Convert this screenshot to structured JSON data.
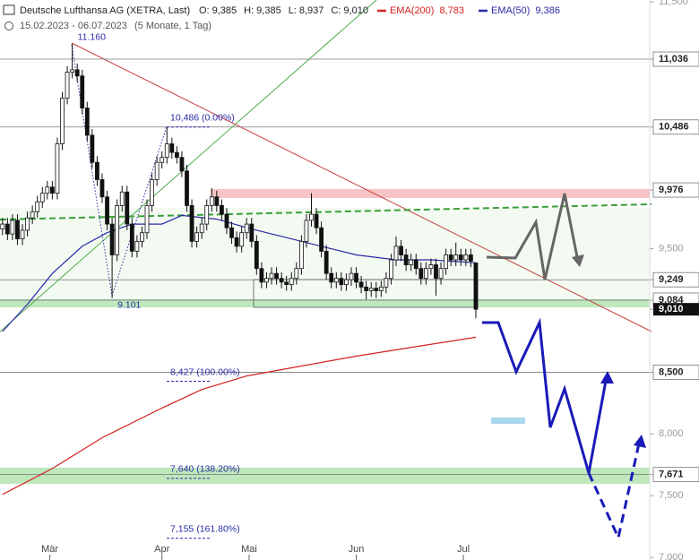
{
  "chart_data": {
    "type": "candlestick",
    "title": "Deutsche Lufthansa AG (XETRA, Last)",
    "quote": [
      {
        "name": "O:",
        "value": 9.385,
        "label": "9,385"
      },
      {
        "name": "H:",
        "value": 9.385,
        "label": "9,385"
      },
      {
        "name": "L:",
        "value": 8.937,
        "label": "8,937"
      },
      {
        "name": "C:",
        "value": 9.01,
        "label": "9,010"
      }
    ],
    "subtitle": "15.02.2023 - 06.07.2023",
    "period": "(5 Monate, 1 Tag)",
    "open": [
      9.66,
      9.7,
      9.62,
      9.73,
      9.58,
      9.65,
      9.75,
      9.8,
      9.88,
      9.95,
      10.0,
      9.95,
      10.35,
      10.72,
      10.93,
      10.95,
      10.9,
      10.64,
      10.42,
      10.2,
      10.06,
      9.92,
      9.7,
      9.45,
      9.85,
      9.96,
      9.7,
      9.48,
      9.56,
      9.63,
      9.85,
      10.06,
      10.2,
      10.24,
      10.35,
      10.28,
      10.24,
      10.13,
      9.85,
      9.56,
      9.63,
      9.7,
      9.85,
      9.92,
      9.85,
      9.78,
      9.67,
      9.59,
      9.52,
      9.63,
      9.7,
      9.56,
      9.34,
      9.23,
      9.26,
      9.3,
      9.26,
      9.23,
      9.21,
      9.26,
      9.34,
      9.56,
      9.73,
      9.78,
      9.67,
      9.48,
      9.3,
      9.23,
      9.26,
      9.21,
      9.25,
      9.3,
      9.23,
      9.19,
      9.16,
      9.18,
      9.16,
      9.19,
      9.26,
      9.41,
      9.52,
      9.45,
      9.37,
      9.41,
      9.34,
      9.26,
      9.34,
      9.37,
      9.26,
      9.34,
      9.45,
      9.41,
      9.45,
      9.41,
      9.45,
      9.385
    ],
    "high": [
      9.75,
      9.75,
      9.78,
      9.78,
      9.7,
      9.8,
      9.85,
      9.93,
      10.0,
      10.05,
      10.05,
      10.4,
      10.77,
      10.98,
      11.16,
      11.0,
      10.95,
      10.69,
      10.47,
      10.25,
      10.11,
      9.97,
      9.75,
      9.9,
      10.01,
      10.01,
      9.75,
      9.61,
      9.68,
      9.9,
      10.11,
      10.25,
      10.29,
      10.486,
      10.4,
      10.33,
      10.29,
      10.18,
      9.9,
      9.68,
      9.75,
      9.9,
      9.99,
      9.97,
      9.9,
      9.83,
      9.72,
      9.64,
      9.68,
      9.75,
      9.75,
      9.61,
      9.39,
      9.31,
      9.35,
      9.35,
      9.31,
      9.28,
      9.31,
      9.39,
      9.61,
      9.78,
      9.95,
      9.83,
      9.72,
      9.53,
      9.35,
      9.31,
      9.31,
      9.3,
      9.35,
      9.35,
      9.28,
      9.24,
      9.23,
      9.23,
      9.24,
      9.31,
      9.46,
      9.6,
      9.57,
      9.5,
      9.46,
      9.46,
      9.39,
      9.39,
      9.42,
      9.42,
      9.39,
      9.5,
      9.5,
      9.55,
      9.5,
      9.5,
      9.5,
      9.385
    ],
    "low": [
      9.61,
      9.57,
      9.57,
      9.53,
      9.53,
      9.6,
      9.7,
      9.75,
      9.83,
      9.9,
      9.9,
      9.9,
      10.3,
      10.67,
      10.88,
      10.85,
      10.59,
      10.37,
      10.15,
      10.01,
      9.87,
      9.65,
      9.101,
      9.4,
      9.8,
      9.65,
      9.43,
      9.43,
      9.51,
      9.58,
      9.8,
      10.01,
      10.15,
      10.19,
      10.23,
      10.19,
      10.08,
      9.8,
      9.51,
      9.51,
      9.58,
      9.65,
      9.8,
      9.8,
      9.73,
      9.62,
      9.54,
      9.47,
      9.47,
      9.58,
      9.51,
      9.29,
      9.18,
      9.18,
      9.21,
      9.21,
      9.18,
      9.16,
      9.16,
      9.21,
      9.29,
      9.51,
      9.68,
      9.62,
      9.43,
      9.25,
      9.18,
      9.18,
      9.16,
      9.16,
      9.2,
      9.18,
      9.14,
      9.09,
      9.11,
      9.1,
      9.11,
      9.14,
      9.21,
      9.36,
      9.4,
      9.32,
      9.32,
      9.29,
      9.21,
      9.21,
      9.29,
      9.12,
      9.21,
      9.29,
      9.36,
      9.36,
      9.36,
      9.36,
      9.35,
      8.937
    ],
    "close": [
      9.7,
      9.62,
      9.73,
      9.58,
      9.65,
      9.75,
      9.8,
      9.88,
      9.95,
      10.0,
      9.95,
      10.35,
      10.72,
      10.93,
      10.95,
      10.9,
      10.64,
      10.42,
      10.2,
      10.06,
      9.92,
      9.7,
      9.45,
      9.85,
      9.96,
      9.7,
      9.48,
      9.56,
      9.63,
      9.85,
      10.06,
      10.2,
      10.24,
      10.35,
      10.28,
      10.24,
      10.13,
      9.85,
      9.56,
      9.63,
      9.7,
      9.85,
      9.92,
      9.85,
      9.78,
      9.67,
      9.59,
      9.52,
      9.63,
      9.7,
      9.56,
      9.34,
      9.23,
      9.26,
      9.3,
      9.26,
      9.23,
      9.21,
      9.26,
      9.34,
      9.56,
      9.73,
      9.78,
      9.67,
      9.48,
      9.3,
      9.23,
      9.26,
      9.21,
      9.25,
      9.3,
      9.23,
      9.19,
      9.16,
      9.18,
      9.16,
      9.19,
      9.26,
      9.41,
      9.52,
      9.45,
      9.37,
      9.41,
      9.34,
      9.26,
      9.34,
      9.37,
      9.26,
      9.34,
      9.45,
      9.41,
      9.45,
      9.41,
      9.45,
      9.4,
      9.01
    ],
    "series": [
      {
        "name": "EMA(200)",
        "color": "#d42020",
        "last": {
          "value": 8.783,
          "label": "8,783"
        },
        "x": [
          0,
          10,
          20,
          32,
          40,
          49,
          60,
          71,
          85,
          95
        ],
        "values": [
          7.51,
          7.72,
          7.97,
          8.21,
          8.36,
          8.47,
          8.55,
          8.63,
          8.72,
          8.783
        ]
      },
      {
        "name": "EMA(50)",
        "color": "#2a2aa8",
        "last": {
          "value": 9.386,
          "label": "9,386"
        },
        "x": [
          0,
          5,
          10,
          16,
          21,
          26,
          32,
          36,
          43,
          50,
          57,
          64,
          71,
          79,
          86,
          95
        ],
        "values": [
          8.83,
          9.05,
          9.3,
          9.52,
          9.63,
          9.7,
          9.7,
          9.77,
          9.74,
          9.66,
          9.59,
          9.52,
          9.45,
          9.41,
          9.41,
          9.386
        ]
      }
    ],
    "xlim": [
      -0.5,
      129.9
    ],
    "xticks": [
      {
        "value": 9.5,
        "label": "Mär"
      },
      {
        "value": 32,
        "label": "Apr"
      },
      {
        "value": 49.5,
        "label": "Mai"
      },
      {
        "value": 71,
        "label": "Jun"
      },
      {
        "value": 92.5,
        "label": "Jul"
      }
    ],
    "ylim": [
      6.979,
      11.515
    ],
    "yticks": [
      {
        "value": 11.5,
        "label": "11,500"
      },
      {
        "value": 11.036,
        "label": "11,036",
        "style": "box",
        "line": true
      },
      {
        "value": 10.486,
        "label": "10,486",
        "style": "box",
        "line": true
      },
      {
        "value": 9.976,
        "label": "9,976",
        "style": "box"
      },
      {
        "value": 9.5,
        "label": "9,500"
      },
      {
        "value": 9.249,
        "label": "9,249",
        "style": "box",
        "line": true
      },
      {
        "value": 9.084,
        "label": "9,084",
        "style": "box",
        "line": true
      },
      {
        "value": 9.01,
        "label": "9,010",
        "style": "current"
      },
      {
        "value": 8.5,
        "label": "8,500",
        "style": "box",
        "line": true
      },
      {
        "value": 8.0,
        "label": "8,000"
      },
      {
        "value": 7.671,
        "label": "7,671",
        "style": "box",
        "line": true
      },
      {
        "value": 7.5,
        "label": "7,500"
      },
      {
        "value": 7.0,
        "label": "7,000"
      }
    ],
    "fib_levels": [
      {
        "text": "10,486 (0.00%)",
        "value": 10.486
      },
      {
        "text": "8,427 (100.00%)",
        "value": 8.427
      },
      {
        "text": "7,640 (138.20%)",
        "value": 7.64
      },
      {
        "text": "7,155 (161.80%)",
        "value": 7.155
      }
    ],
    "pivots": [
      {
        "text": "11.160",
        "value": 11.16,
        "x": 14
      },
      {
        "text": "9.101",
        "value": 9.101,
        "x": 22
      }
    ]
  }
}
